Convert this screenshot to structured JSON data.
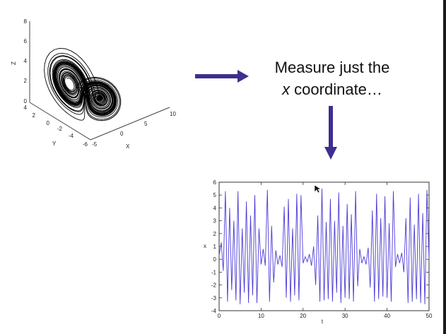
{
  "caption": {
    "line1": "Measure just the",
    "line2_var": "x",
    "line2_rest": " coordinate…"
  },
  "plot3d": {
    "axis_z": "Z",
    "axis_y": "Y",
    "axis_x": "X",
    "z_ticks": [
      "0",
      "2",
      "4",
      "6",
      "8"
    ],
    "y_ticks": [
      "4",
      "2",
      "0",
      "-2",
      "-4",
      "-6"
    ],
    "x_ticks": [
      "-5",
      "0",
      "5",
      "10"
    ],
    "line_color": "#000000"
  },
  "arrow_color": "#3d2f8f",
  "chart_data": {
    "type": "line",
    "title": "",
    "xlabel": "t",
    "ylabel": "x",
    "xlim": [
      0,
      50
    ],
    "ylim": [
      -4,
      6
    ],
    "x_ticks": [
      "0",
      "10",
      "20",
      "30",
      "40",
      "50"
    ],
    "y_ticks": [
      "6",
      "5",
      "4",
      "3",
      "2",
      "1",
      "0",
      "-1",
      "-2",
      "-3",
      "-4"
    ],
    "line_color": "#4b3bd6",
    "series": [
      {
        "x": [
          0,
          0.5,
          1,
          1.5,
          2,
          2.5,
          3,
          3.5,
          4,
          4.5,
          5,
          5.5,
          6,
          6.5,
          7,
          7.5,
          8,
          8.5,
          9,
          9.5,
          10,
          10.5,
          11,
          11.5,
          12,
          12.5,
          13,
          13.5,
          14,
          14.5,
          15,
          15.5,
          16,
          16.5,
          17,
          17.5,
          18,
          18.5,
          19,
          19.5,
          20,
          20.5,
          21,
          21.5,
          22,
          22.5,
          23,
          23.5,
          24,
          24.5,
          25,
          25.5,
          26,
          26.5,
          27,
          27.5,
          28,
          28.5,
          29,
          29.5,
          30,
          30.5,
          31,
          31.5,
          32,
          32.5,
          33,
          33.5,
          34,
          34.5,
          35,
          35.5,
          36,
          36.5,
          37,
          37.5,
          38,
          38.5,
          39,
          39.5,
          40,
          40.5,
          41,
          41.5,
          42,
          42.5,
          43,
          43.5,
          44,
          44.5,
          45,
          45.5,
          46,
          46.5,
          47,
          47.5,
          48,
          48.5,
          49,
          49.5,
          50
        ],
        "values": [
          0.3,
          1.3,
          -0.9,
          5.3,
          -3.3,
          4.0,
          -2.4,
          3.0,
          -3.2,
          5.3,
          -3.5,
          2.4,
          -2.6,
          4.5,
          -3.4,
          3.4,
          -2.8,
          5.0,
          -3.4,
          2.4,
          -0.4,
          0.8,
          -0.5,
          5.4,
          -3.3,
          2.6,
          -1.8,
          0.7,
          -0.4,
          0.3,
          -0.6,
          4.1,
          -3.0,
          4.7,
          -3.3,
          2.4,
          -2.8,
          5.1,
          -3.2,
          5.0,
          -0.3,
          0.2,
          -0.2,
          0.4,
          -0.5,
          1.0,
          -2.0,
          3.4,
          -3.3,
          5.5,
          -3.2,
          2.9,
          -3.1,
          4.7,
          -3.3,
          3.0,
          -2.6,
          5.2,
          -3.4,
          2.6,
          -3.0,
          4.3,
          -3.1,
          3.5,
          -3.3,
          5.3,
          -2.1,
          0.8,
          -0.3,
          0.2,
          -0.4,
          0.9,
          -2.2,
          3.8,
          -3.3,
          5.1,
          -3.1,
          3.2,
          -2.9,
          4.9,
          -3.0,
          2.8,
          -3.3,
          5.3,
          -0.6,
          0.4,
          -0.3,
          0.5,
          -1.0,
          3.2,
          -3.4,
          4.8,
          -3.3,
          2.7,
          -3.1,
          5.1,
          -3.4,
          3.6,
          -3.5,
          5.4,
          0.0
        ]
      }
    ]
  }
}
